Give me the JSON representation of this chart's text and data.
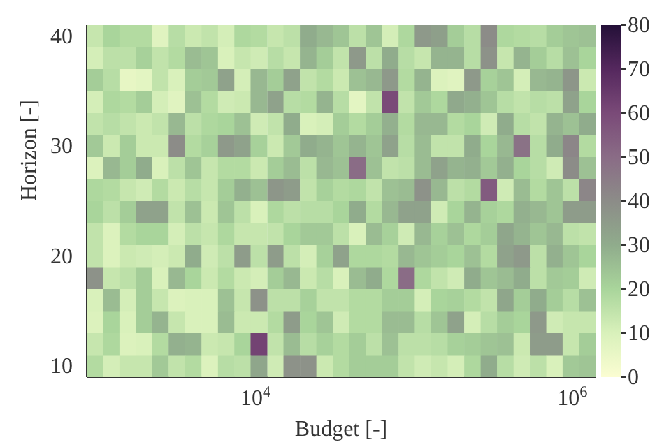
{
  "chart_data": {
    "type": "heatmap",
    "xlabel": "Budget [-]",
    "ylabel": "Horizon [-]",
    "log": "x",
    "xlim": [
      860,
      1400000
    ],
    "xticks": [
      {
        "value": 10000,
        "label": "10$^{4}$"
      },
      {
        "value": 1000000,
        "label": "10$^{6}$"
      }
    ],
    "ylim": [
      9,
      41
    ],
    "yticks": [
      10,
      20,
      30,
      40
    ],
    "x": [
      970,
      1230,
      1560,
      1980,
      2510,
      3190,
      4050,
      5140,
      6530,
      8280,
      10500,
      13400,
      16900,
      21500,
      27300,
      34700,
      44000,
      55800,
      71000,
      90000,
      114000,
      145000,
      184000,
      234000,
      297000,
      377000,
      479000,
      607000,
      771000,
      977000,
      1240000
    ],
    "y": [
      40,
      38,
      36,
      34,
      32,
      30,
      28,
      26,
      24,
      22,
      20,
      18,
      16,
      14,
      12,
      10
    ],
    "clim": [
      0,
      80
    ],
    "cticks": [
      0,
      10,
      20,
      30,
      40,
      50,
      60,
      70,
      80
    ],
    "grid": false,
    "cells": [
      [
        14,
        20,
        18,
        18,
        8,
        17,
        13,
        15,
        11,
        19,
        18,
        14,
        16,
        30,
        27,
        24,
        16,
        24,
        11,
        19,
        36,
        34,
        22,
        17,
        40,
        19,
        18,
        17,
        22,
        24,
        25
      ],
      [
        11,
        16,
        16,
        21,
        15,
        18,
        26,
        24,
        10,
        14,
        12,
        17,
        14,
        28,
        22,
        15,
        36,
        16,
        30,
        17,
        14,
        28,
        28,
        17,
        38,
        14,
        28,
        22,
        17,
        25,
        20
      ],
      [
        22,
        17,
        6,
        7,
        15,
        10,
        22,
        23,
        33,
        11,
        27,
        22,
        33,
        15,
        18,
        13,
        25,
        27,
        36,
        18,
        28,
        9,
        8,
        36,
        21,
        24,
        11,
        27,
        28,
        37,
        13
      ],
      [
        11,
        19,
        18,
        22,
        11,
        8,
        25,
        18,
        12,
        13,
        27,
        33,
        17,
        18,
        28,
        17,
        7,
        15,
        60,
        15,
        23,
        19,
        31,
        29,
        24,
        17,
        15,
        17,
        16,
        33,
        20
      ],
      [
        15,
        17,
        15,
        13,
        15,
        27,
        16,
        19,
        20,
        25,
        12,
        15,
        30,
        10,
        11,
        22,
        18,
        22,
        29,
        18,
        27,
        27,
        18,
        20,
        12,
        30,
        17,
        15,
        28,
        25,
        30
      ],
      [
        23,
        13,
        22,
        13,
        13,
        40,
        18,
        21,
        36,
        33,
        21,
        13,
        23,
        30,
        28,
        24,
        28,
        24,
        33,
        17,
        26,
        15,
        15,
        30,
        20,
        27,
        48,
        17,
        30,
        42,
        18
      ],
      [
        9,
        27,
        22,
        30,
        10,
        16,
        24,
        14,
        18,
        18,
        13,
        22,
        26,
        16,
        27,
        25,
        50,
        25,
        15,
        16,
        26,
        33,
        28,
        29,
        23,
        29,
        20,
        17,
        12,
        40,
        25
      ],
      [
        19,
        18,
        14,
        12,
        18,
        13,
        17,
        14,
        22,
        29,
        25,
        37,
        35,
        15,
        21,
        18,
        19,
        15,
        25,
        26,
        38,
        27,
        16,
        18,
        55,
        12,
        26,
        18,
        24,
        16,
        42
      ],
      [
        20,
        16,
        22,
        33,
        33,
        15,
        25,
        13,
        24,
        16,
        10,
        19,
        16,
        17,
        17,
        20,
        30,
        18,
        27,
        33,
        33,
        12,
        20,
        28,
        21,
        19,
        29,
        27,
        24,
        35,
        35
      ],
      [
        15,
        9,
        18,
        20,
        20,
        11,
        16,
        14,
        19,
        14,
        14,
        15,
        20,
        23,
        23,
        16,
        10,
        26,
        21,
        12,
        27,
        21,
        25,
        19,
        22,
        32,
        28,
        24,
        27,
        16,
        15
      ],
      [
        15,
        9,
        13,
        12,
        11,
        13,
        30,
        12,
        16,
        35,
        16,
        35,
        16,
        11,
        21,
        33,
        19,
        19,
        18,
        27,
        24,
        22,
        20,
        25,
        18,
        33,
        36,
        16,
        29,
        24,
        20
      ],
      [
        38,
        14,
        16,
        22,
        10,
        27,
        20,
        13,
        18,
        13,
        11,
        22,
        27,
        13,
        17,
        10,
        26,
        30,
        19,
        50,
        19,
        15,
        12,
        30,
        24,
        26,
        30,
        16,
        23,
        22,
        12
      ],
      [
        10,
        26,
        11,
        22,
        14,
        9,
        10,
        10,
        25,
        14,
        38,
        16,
        16,
        21,
        15,
        15,
        18,
        18,
        22,
        22,
        11,
        20,
        21,
        18,
        15,
        32,
        22,
        30,
        22,
        17,
        25
      ],
      [
        9,
        20,
        10,
        22,
        28,
        14,
        10,
        10,
        26,
        13,
        13,
        18,
        35,
        20,
        24,
        12,
        18,
        18,
        26,
        26,
        17,
        24,
        33,
        11,
        17,
        22,
        20,
        36,
        12,
        14,
        14
      ],
      [
        14,
        19,
        9,
        10,
        18,
        29,
        28,
        13,
        14,
        20,
        62,
        15,
        26,
        17,
        21,
        18,
        22,
        16,
        25,
        16,
        16,
        17,
        21,
        22,
        24,
        25,
        13,
        35,
        35,
        14,
        22
      ],
      [
        18,
        11,
        14,
        14,
        23,
        15,
        18,
        9,
        17,
        16,
        32,
        12,
        38,
        38,
        13,
        18,
        22,
        22,
        22,
        15,
        12,
        14,
        11,
        19,
        30,
        17,
        12,
        16,
        10,
        23,
        24
      ]
    ]
  }
}
